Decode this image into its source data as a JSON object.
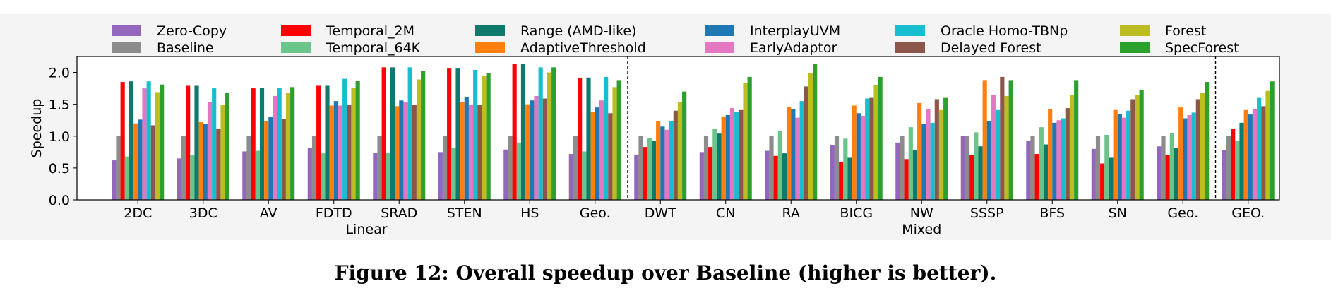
{
  "chart_data": {
    "type": "bar",
    "title": "",
    "xlabel": "",
    "ylabel": "Speedup",
    "ylim": [
      0,
      2.25
    ],
    "yticks": [
      "0.0",
      "0.5",
      "1.0",
      "1.5",
      "2.0"
    ],
    "grid": false,
    "legend_placement": "top",
    "categories": [
      "2DC",
      "3DC",
      "AV",
      "FDTD",
      "SRAD",
      "STEN",
      "HS",
      "Geo.",
      "DWT",
      "CN",
      "RA",
      "BICG",
      "NW",
      "SSSP",
      "BFS",
      "SN",
      "Geo.",
      "GEO."
    ],
    "groups": [
      {
        "label": "Linear",
        "start": 0,
        "end": 7
      },
      {
        "label": "Mixed",
        "start": 8,
        "end": 16
      }
    ],
    "series": [
      {
        "name": "Zero-Copy",
        "color": "#9467bd",
        "values": [
          0.62,
          0.65,
          0.76,
          0.81,
          0.74,
          0.75,
          0.79,
          0.72,
          0.71,
          0.75,
          0.77,
          0.86,
          0.9,
          1.0,
          0.93,
          0.8,
          0.84,
          0.78
        ]
      },
      {
        "name": "Baseline",
        "color": "#8c8c8c",
        "values": [
          1.0,
          1.0,
          1.0,
          1.0,
          1.0,
          1.0,
          1.0,
          1.0,
          1.0,
          1.0,
          1.0,
          1.0,
          1.0,
          1.0,
          1.0,
          1.0,
          1.0,
          1.0
        ]
      },
      {
        "name": "Temporal_2M",
        "color": "#ff0000",
        "values": [
          1.85,
          1.79,
          1.75,
          1.79,
          2.08,
          2.06,
          2.13,
          1.91,
          0.83,
          0.83,
          0.69,
          0.59,
          0.64,
          0.7,
          0.72,
          0.57,
          0.7,
          1.11
        ]
      },
      {
        "name": "Temporal_64K",
        "color": "#6bc48a",
        "values": [
          0.68,
          0.71,
          0.77,
          0.73,
          0.74,
          0.82,
          0.9,
          0.76,
          0.97,
          1.12,
          1.08,
          0.96,
          1.14,
          1.06,
          1.14,
          1.02,
          1.05,
          0.92
        ]
      },
      {
        "name": "Range (AMD-like)",
        "color": "#0f7a6b",
        "values": [
          1.86,
          1.79,
          1.76,
          1.79,
          2.08,
          2.06,
          2.13,
          1.92,
          0.93,
          1.04,
          0.73,
          0.66,
          0.78,
          0.84,
          0.87,
          0.66,
          0.81,
          1.21
        ]
      },
      {
        "name": "AdaptiveThreshold",
        "color": "#ff7f0e",
        "values": [
          1.2,
          1.22,
          1.24,
          1.48,
          1.47,
          1.54,
          1.5,
          1.38,
          1.23,
          1.31,
          1.46,
          1.48,
          1.52,
          1.88,
          1.43,
          1.41,
          1.45,
          1.41
        ]
      },
      {
        "name": "InterplayUVM",
        "color": "#1f77b4",
        "values": [
          1.26,
          1.19,
          1.3,
          1.55,
          1.56,
          1.61,
          1.56,
          1.45,
          1.15,
          1.33,
          1.42,
          1.36,
          1.19,
          1.24,
          1.21,
          1.35,
          1.28,
          1.34
        ]
      },
      {
        "name": "EarlyAdaptor",
        "color": "#e377c2",
        "values": [
          1.75,
          1.54,
          1.63,
          1.48,
          1.54,
          1.49,
          1.63,
          1.56,
          1.1,
          1.44,
          1.29,
          1.32,
          1.42,
          1.64,
          1.25,
          1.29,
          1.33,
          1.43
        ]
      },
      {
        "name": "Oracle Homo-TBNp",
        "color": "#17becf",
        "values": [
          1.86,
          1.75,
          1.76,
          1.9,
          2.08,
          2.04,
          2.08,
          1.93,
          1.24,
          1.38,
          1.55,
          1.59,
          1.21,
          1.41,
          1.28,
          1.4,
          1.37,
          1.6
        ]
      },
      {
        "name": "Delayed Forest",
        "color": "#8c564b",
        "values": [
          1.17,
          1.12,
          1.27,
          1.49,
          1.49,
          1.49,
          1.59,
          1.36,
          1.4,
          1.41,
          1.78,
          1.6,
          1.58,
          1.93,
          1.44,
          1.58,
          1.58,
          1.47
        ]
      },
      {
        "name": "Forest",
        "color": "#bcbd22",
        "values": [
          1.69,
          1.49,
          1.68,
          1.76,
          1.89,
          1.95,
          2.0,
          1.77,
          1.54,
          1.84,
          1.99,
          1.8,
          1.41,
          1.63,
          1.65,
          1.65,
          1.68,
          1.71
        ]
      },
      {
        "name": "SpecForest",
        "color": "#2ca02c",
        "values": [
          1.81,
          1.68,
          1.77,
          1.87,
          2.02,
          1.99,
          2.08,
          1.88,
          1.7,
          1.93,
          2.13,
          1.93,
          1.6,
          1.88,
          1.88,
          1.73,
          1.85,
          1.86
        ]
      }
    ]
  },
  "caption": "Figure 12: Overall speedup over Baseline (higher is better)."
}
